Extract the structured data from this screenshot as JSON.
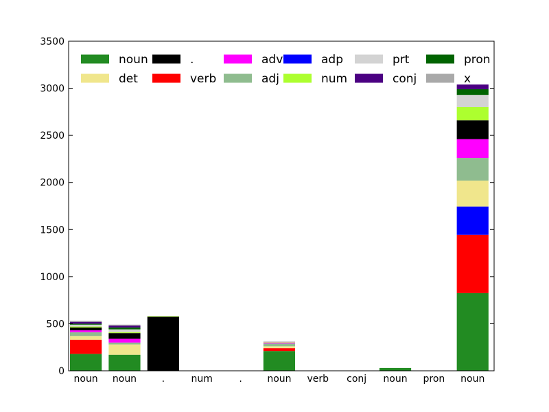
{
  "chart_data": {
    "type": "bar",
    "stacked": true,
    "categories": [
      "noun",
      "noun",
      ".",
      "num",
      ".",
      "noun",
      "verb",
      "conj",
      "noun",
      "pron",
      "noun"
    ],
    "ylim": [
      0,
      3500
    ],
    "yticks": [
      0,
      500,
      1000,
      1500,
      2000,
      2500,
      3000,
      3500
    ],
    "ytick_labels": [
      "0",
      "500",
      "1000",
      "1500",
      "2000",
      "2500",
      "3000",
      "3500"
    ],
    "grid": false,
    "legend_placement": "top",
    "legend_columns": 6,
    "series": [
      {
        "name": "noun",
        "color": "#228b22",
        "values": [
          180,
          170,
          0,
          0,
          0,
          210,
          0,
          0,
          30,
          0,
          825
        ]
      },
      {
        "name": "verb",
        "color": "#ff0000",
        "values": [
          150,
          0,
          0,
          0,
          0,
          30,
          0,
          0,
          0,
          0,
          620
        ]
      },
      {
        "name": "adp",
        "color": "#0000ff",
        "values": [
          0,
          0,
          0,
          0,
          0,
          0,
          0,
          0,
          0,
          0,
          300
        ]
      },
      {
        "name": "det",
        "color": "#f0e68c",
        "values": [
          40,
          110,
          0,
          0,
          0,
          20,
          0,
          0,
          0,
          0,
          275
        ]
      },
      {
        "name": "adj",
        "color": "#8fbc8f",
        "values": [
          40,
          20,
          0,
          0,
          0,
          30,
          0,
          0,
          0,
          0,
          240
        ]
      },
      {
        "name": "adv",
        "color": "#ff00ff",
        "values": [
          20,
          40,
          0,
          0,
          0,
          10,
          0,
          0,
          0,
          0,
          200
        ]
      },
      {
        "name": ".",
        "color": "#000000",
        "values": [
          30,
          60,
          575,
          0,
          0,
          0,
          0,
          0,
          0,
          0,
          200
        ]
      },
      {
        "name": "num",
        "color": "#adff2f",
        "values": [
          10,
          10,
          5,
          0,
          0,
          5,
          0,
          0,
          0,
          0,
          140
        ]
      },
      {
        "name": "prt",
        "color": "#d3d3d3",
        "values": [
          20,
          30,
          0,
          0,
          0,
          10,
          0,
          0,
          0,
          0,
          130
        ]
      },
      {
        "name": "pron",
        "color": "#006400",
        "values": [
          10,
          20,
          0,
          0,
          0,
          0,
          0,
          0,
          0,
          0,
          60
        ]
      },
      {
        "name": "conj",
        "color": "#4b0082",
        "values": [
          20,
          20,
          0,
          0,
          0,
          0,
          0,
          0,
          0,
          0,
          50
        ]
      },
      {
        "name": "x",
        "color": "#a9a9a9",
        "values": [
          10,
          10,
          0,
          0,
          0,
          0,
          0,
          0,
          0,
          0,
          0
        ]
      }
    ],
    "legend_order": [
      "noun",
      "det",
      ".",
      "verb",
      "adv",
      "adj",
      "adp",
      "num",
      "prt",
      "conj",
      "pron",
      "x"
    ]
  }
}
